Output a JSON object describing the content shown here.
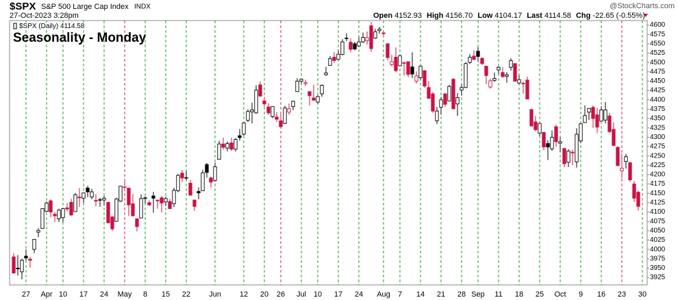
{
  "chart_data": {
    "type": "candlestick",
    "symbol": "$SPX",
    "name": "S&P 500 Large Cap Index",
    "exchange": "INDX",
    "timestamp": "27-Oct-2023 3:28pm",
    "source": "@StockCharts.com",
    "legend": "$SPX (Daily) 4114.58",
    "title": "Seasonality - Monday",
    "quote": {
      "open_label": "Open",
      "open": 4152.93,
      "high_label": "High",
      "high": {
        "value": 4156.7,
        "label": "4156.70"
      },
      "low_label": "Low",
      "low": 4104.17,
      "last_label": "Last",
      "last": 4114.58,
      "chg_label": "Chg",
      "chg": -22.65,
      "chg_pct": {
        "value": -0.55,
        "label": "(-0.55%)"
      }
    },
    "up_color": "#000000",
    "down_color": "#cc1144",
    "vgrid_color": "#1e9e1e",
    "vgrid_alt_color": "#cc2244",
    "vgrid_alt_at": [
      27,
      65,
      148
    ],
    "title_color": "#1515d0",
    "ylim": [
      3905,
      4612
    ],
    "yticks": [
      3925,
      3950,
      3975,
      4000,
      4025,
      4050,
      4075,
      4100,
      4125,
      4150,
      4175,
      4200,
      4225,
      4250,
      4275,
      4300,
      4325,
      4350,
      4375,
      4400,
      4425,
      4450,
      4475,
      4500,
      4525,
      4550,
      4575,
      4600
    ],
    "categories": [
      null,
      null,
      null,
      "27",
      null,
      null,
      null,
      null,
      "Apr",
      null,
      null,
      null,
      "10",
      null,
      null,
      null,
      null,
      "17",
      null,
      null,
      null,
      null,
      "24",
      null,
      null,
      null,
      null,
      "May",
      null,
      null,
      null,
      null,
      "8",
      null,
      null,
      null,
      null,
      "15",
      null,
      null,
      null,
      null,
      "22",
      null,
      null,
      null,
      null,
      null,
      null,
      "Jun",
      null,
      null,
      null,
      null,
      null,
      null,
      "12",
      null,
      null,
      null,
      null,
      "20",
      null,
      null,
      null,
      "26",
      null,
      null,
      null,
      null,
      "Jul",
      null,
      null,
      null,
      "10",
      null,
      null,
      null,
      null,
      "17",
      null,
      null,
      null,
      null,
      "24",
      null,
      null,
      null,
      null,
      null,
      "Aug",
      null,
      null,
      null,
      "7",
      null,
      null,
      null,
      null,
      "14",
      null,
      null,
      null,
      null,
      "21",
      null,
      null,
      null,
      null,
      "28",
      null,
      null,
      null,
      "Sep",
      null,
      null,
      null,
      null,
      "11",
      null,
      null,
      null,
      null,
      "18",
      null,
      null,
      null,
      null,
      "25",
      null,
      null,
      null,
      null,
      "Oct",
      null,
      null,
      null,
      null,
      "9",
      null,
      null,
      null,
      null,
      "16",
      null,
      null,
      null,
      null,
      "23",
      null,
      null,
      null,
      null,
      "30"
    ],
    "candles": [
      [
        3980,
        3990,
        3935,
        3937
      ],
      [
        3950,
        3985,
        3930,
        3948
      ],
      [
        3940,
        3975,
        3920,
        3971
      ],
      [
        3982,
        4000,
        3970,
        3977
      ],
      [
        3974,
        3980,
        3951,
        3971
      ],
      [
        4000,
        4027,
        3990,
        4027
      ],
      [
        4046,
        4057,
        4033,
        4051
      ],
      [
        4056,
        4110,
        4056,
        4109
      ],
      [
        4102,
        4128,
        4100,
        4124
      ],
      [
        4130,
        4134,
        4086,
        4100
      ],
      [
        4094,
        4100,
        4073,
        4090
      ],
      [
        4082,
        4109,
        4073,
        4105
      ],
      [
        4085,
        4110,
        4073,
        4109
      ],
      [
        4111,
        4124,
        4102,
        4108
      ],
      [
        4126,
        4135,
        4090,
        4092
      ],
      [
        4101,
        4151,
        4101,
        4146
      ],
      [
        4140,
        4164,
        4114,
        4138
      ],
      [
        4137,
        4152,
        4124,
        4151
      ],
      [
        4164,
        4170,
        4140,
        4154
      ],
      [
        4140,
        4162,
        4134,
        4154
      ],
      [
        4131,
        4148,
        4115,
        4129
      ],
      [
        4133,
        4138,
        4114,
        4133
      ],
      [
        4132,
        4143,
        4117,
        4137
      ],
      [
        4126,
        4127,
        4071,
        4071
      ],
      [
        4087,
        4089,
        4049,
        4055
      ],
      [
        4075,
        4138,
        4075,
        4135
      ],
      [
        4129,
        4170,
        4127,
        4169
      ],
      [
        4166,
        4186,
        4164,
        4167
      ],
      [
        4164,
        4164,
        4089,
        4119
      ],
      [
        4122,
        4148,
        4088,
        4090
      ],
      [
        4082,
        4083,
        4048,
        4061
      ],
      [
        4084,
        4147,
        4084,
        4136
      ],
      [
        4136,
        4142,
        4123,
        4138
      ],
      [
        4125,
        4131,
        4116,
        4119
      ],
      [
        4143,
        4154,
        4098,
        4137
      ],
      [
        4132,
        4132,
        4109,
        4130
      ],
      [
        4138,
        4143,
        4099,
        4124
      ],
      [
        4127,
        4141,
        4116,
        4136
      ],
      [
        4128,
        4135,
        4109,
        4109
      ],
      [
        4122,
        4165,
        4113,
        4158
      ],
      [
        4157,
        4202,
        4153,
        4198
      ],
      [
        4204,
        4212,
        4180,
        4191
      ],
      [
        4191,
        4210,
        4185,
        4192
      ],
      [
        4177,
        4186,
        4145,
        4145
      ],
      [
        4132,
        4133,
        4103,
        4115
      ],
      [
        4155,
        4166,
        4134,
        4151
      ],
      [
        4157,
        4213,
        4157,
        4205
      ],
      [
        4227,
        4231,
        4192,
        4206
      ],
      [
        4191,
        4195,
        4166,
        4180
      ],
      [
        4184,
        4232,
        4181,
        4221
      ],
      [
        4241,
        4290,
        4241,
        4282
      ],
      [
        4282,
        4299,
        4267,
        4273
      ],
      [
        4271,
        4289,
        4262,
        4283
      ],
      [
        4285,
        4299,
        4263,
        4268
      ],
      [
        4268,
        4298,
        4262,
        4294
      ],
      [
        4304,
        4322,
        4291,
        4299
      ],
      [
        4308,
        4340,
        4304,
        4338
      ],
      [
        4345,
        4375,
        4341,
        4369
      ],
      [
        4368,
        4392,
        4337,
        4373
      ],
      [
        4365,
        4439,
        4363,
        4426
      ],
      [
        4440,
        4449,
        4408,
        4410
      ],
      [
        4397,
        4408,
        4382,
        4389
      ],
      [
        4381,
        4391,
        4360,
        4365
      ],
      [
        4355,
        4382,
        4351,
        4382
      ],
      [
        4354,
        4367,
        4341,
        4348
      ],
      [
        4344,
        4362,
        4328,
        4328
      ],
      [
        4337,
        4384,
        4335,
        4378
      ],
      [
        4367,
        4390,
        4360,
        4376
      ],
      [
        4382,
        4398,
        4372,
        4396
      ],
      [
        4422,
        4458,
        4422,
        4450
      ],
      [
        4450,
        4456,
        4443,
        4455
      ],
      [
        4443,
        4454,
        4437,
        4446
      ],
      [
        4422,
        4423,
        4385,
        4411
      ],
      [
        4405,
        4440,
        4397,
        4399
      ],
      [
        4394,
        4412,
        4389,
        4409
      ],
      [
        4416,
        4441,
        4408,
        4439
      ],
      [
        4467,
        4488,
        4464,
        4472
      ],
      [
        4492,
        4517,
        4491,
        4510
      ],
      [
        4514,
        4528,
        4499,
        4505
      ],
      [
        4508,
        4532,
        4507,
        4522
      ],
      [
        4521,
        4562,
        4519,
        4555
      ],
      [
        4564,
        4578,
        4557,
        4565
      ],
      [
        4554,
        4564,
        4527,
        4535
      ],
      [
        4550,
        4555,
        4532,
        4536
      ],
      [
        4544,
        4568,
        4542,
        4555
      ],
      [
        4555,
        4580,
        4552,
        4567
      ],
      [
        4558,
        4583,
        4547,
        4566
      ],
      [
        4598,
        4608,
        4528,
        4537
      ],
      [
        4565,
        4590,
        4563,
        4582
      ],
      [
        4585,
        4595,
        4577,
        4589
      ],
      [
        4579,
        4585,
        4567,
        4577
      ],
      [
        4550,
        4550,
        4505,
        4513
      ],
      [
        4494,
        4520,
        4490,
        4502
      ],
      [
        4514,
        4540,
        4474,
        4478
      ],
      [
        4491,
        4519,
        4491,
        4518
      ],
      [
        4498,
        4503,
        4465,
        4499
      ],
      [
        4502,
        4502,
        4461,
        4468
      ],
      [
        4488,
        4527,
        4458,
        4469
      ],
      [
        4450,
        4476,
        4443,
        4464
      ],
      [
        4459,
        4490,
        4453,
        4490
      ],
      [
        4478,
        4479,
        4432,
        4437
      ],
      [
        4433,
        4450,
        4403,
        4404
      ],
      [
        4416,
        4421,
        4365,
        4370
      ],
      [
        4344,
        4381,
        4335,
        4370
      ],
      [
        4380,
        4408,
        4360,
        4400
      ],
      [
        4416,
        4418,
        4382,
        4388
      ],
      [
        4397,
        4440,
        4396,
        4436
      ],
      [
        4455,
        4458,
        4375,
        4376
      ],
      [
        4389,
        4418,
        4357,
        4406
      ],
      [
        4426,
        4441,
        4411,
        4433
      ],
      [
        4433,
        4501,
        4431,
        4497
      ],
      [
        4500,
        4522,
        4496,
        4514
      ],
      [
        4517,
        4532,
        4507,
        4508
      ],
      [
        4530,
        4541,
        4501,
        4516
      ],
      [
        4511,
        4514,
        4493,
        4497
      ],
      [
        4490,
        4490,
        4442,
        4465
      ],
      [
        4434,
        4457,
        4430,
        4451
      ],
      [
        4452,
        4473,
        4448,
        4457
      ],
      [
        4480,
        4490,
        4468,
        4487
      ],
      [
        4473,
        4487,
        4459,
        4462
      ],
      [
        4463,
        4474,
        4446,
        4467
      ],
      [
        4487,
        4511,
        4478,
        4505
      ],
      [
        4497,
        4498,
        4448,
        4450
      ],
      [
        4445,
        4466,
        4442,
        4454
      ],
      [
        4443,
        4449,
        4417,
        4444
      ],
      [
        4453,
        4462,
        4402,
        4402
      ],
      [
        4374,
        4376,
        4329,
        4330
      ],
      [
        4341,
        4357,
        4316,
        4320
      ],
      [
        4311,
        4338,
        4303,
        4337
      ],
      [
        4313,
        4314,
        4265,
        4274
      ],
      [
        4283,
        4292,
        4239,
        4274
      ],
      [
        4269,
        4318,
        4264,
        4300
      ],
      [
        4328,
        4334,
        4274,
        4288
      ],
      [
        4284,
        4300,
        4260,
        4288
      ],
      [
        4270,
        4270,
        4220,
        4229
      ],
      [
        4233,
        4268,
        4220,
        4263
      ],
      [
        4260,
        4267,
        4225,
        4258
      ],
      [
        4234,
        4324,
        4219,
        4308
      ],
      [
        4290,
        4337,
        4284,
        4336
      ],
      [
        4339,
        4385,
        4339,
        4358
      ],
      [
        4367,
        4378,
        4346,
        4377
      ],
      [
        4380,
        4385,
        4325,
        4350
      ],
      [
        4360,
        4378,
        4311,
        4327
      ],
      [
        4343,
        4383,
        4343,
        4373
      ],
      [
        4346,
        4394,
        4337,
        4373
      ],
      [
        4357,
        4365,
        4311,
        4315
      ],
      [
        4321,
        4340,
        4276,
        4278
      ],
      [
        4273,
        4276,
        4224,
        4224
      ],
      [
        4210,
        4256,
        4190,
        4217
      ],
      [
        4235,
        4255,
        4216,
        4248
      ],
      [
        4232,
        4232,
        4181,
        4186
      ],
      [
        4175,
        4183,
        4127,
        4137
      ],
      [
        4153,
        4157,
        4104,
        4115
      ],
      null
    ]
  }
}
